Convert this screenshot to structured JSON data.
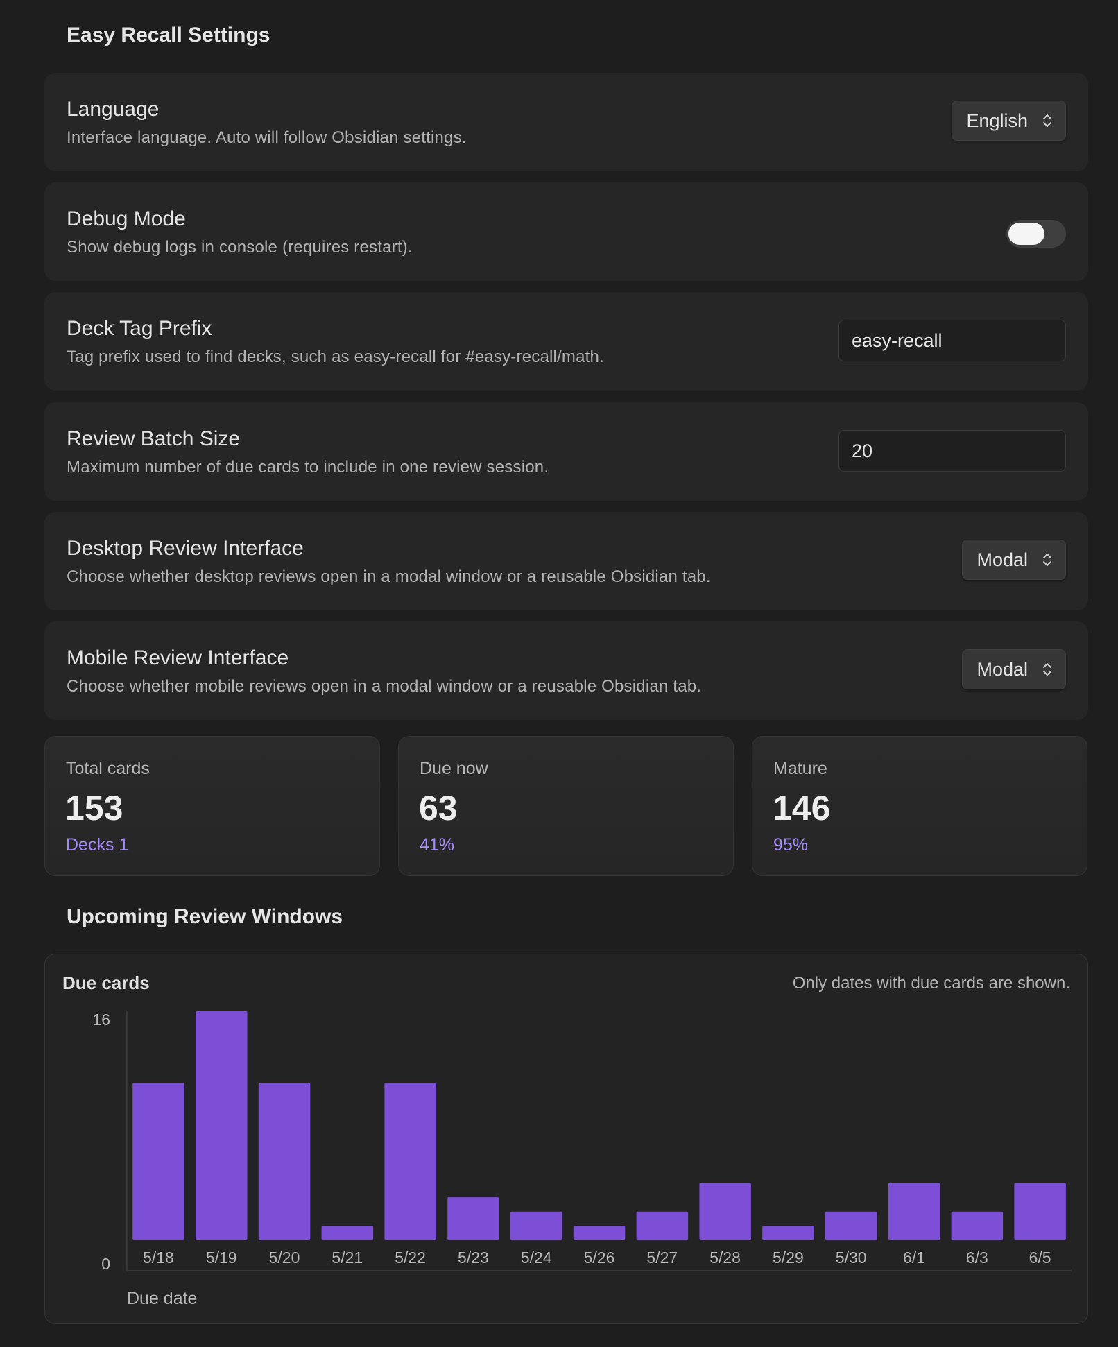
{
  "page_title": "Easy Recall Settings",
  "settings": {
    "language": {
      "name": "Language",
      "desc": "Interface language. Auto will follow Obsidian settings.",
      "value": "English"
    },
    "debug": {
      "name": "Debug Mode",
      "desc": "Show debug logs in console (requires restart).",
      "enabled": false
    },
    "deck_tag": {
      "name": "Deck Tag Prefix",
      "desc": "Tag prefix used to find decks, such as easy-recall for #easy-recall/math.",
      "value": "easy-recall"
    },
    "batch": {
      "name": "Review Batch Size",
      "desc": "Maximum number of due cards to include in one review session.",
      "value": "20"
    },
    "desktop": {
      "name": "Desktop Review Interface",
      "desc": "Choose whether desktop reviews open in a modal window or a reusable Obsidian tab.",
      "value": "Modal"
    },
    "mobile": {
      "name": "Mobile Review Interface",
      "desc": "Choose whether mobile reviews open in a modal window or a reusable Obsidian tab.",
      "value": "Modal"
    }
  },
  "stats": {
    "total": {
      "label": "Total cards",
      "value": "153",
      "sub": "Decks 1"
    },
    "due": {
      "label": "Due now",
      "value": "63",
      "sub": "41%"
    },
    "mature": {
      "label": "Mature",
      "value": "146",
      "sub": "95%"
    }
  },
  "upcoming_title": "Upcoming Review Windows",
  "chart_data": {
    "type": "bar",
    "title": "Due cards",
    "note": "Only dates with due cards are shown.",
    "xlabel": "Due date",
    "ylabel": "",
    "categories": [
      "5/18",
      "5/19",
      "5/20",
      "5/21",
      "5/22",
      "5/23",
      "5/24",
      "5/26",
      "5/27",
      "5/28",
      "5/29",
      "5/30",
      "6/1",
      "6/3",
      "6/5"
    ],
    "values": [
      11,
      16,
      11,
      1,
      11,
      3,
      2,
      1,
      2,
      4,
      1,
      2,
      4,
      2,
      4
    ],
    "ylim": [
      0,
      16
    ],
    "yticks": [
      "16",
      "0"
    ],
    "bar_color": "#7c4fd6",
    "grid": false
  },
  "colors": {
    "accent": "#a88bfa",
    "background": "#1e1e1e",
    "card": "#262626"
  }
}
